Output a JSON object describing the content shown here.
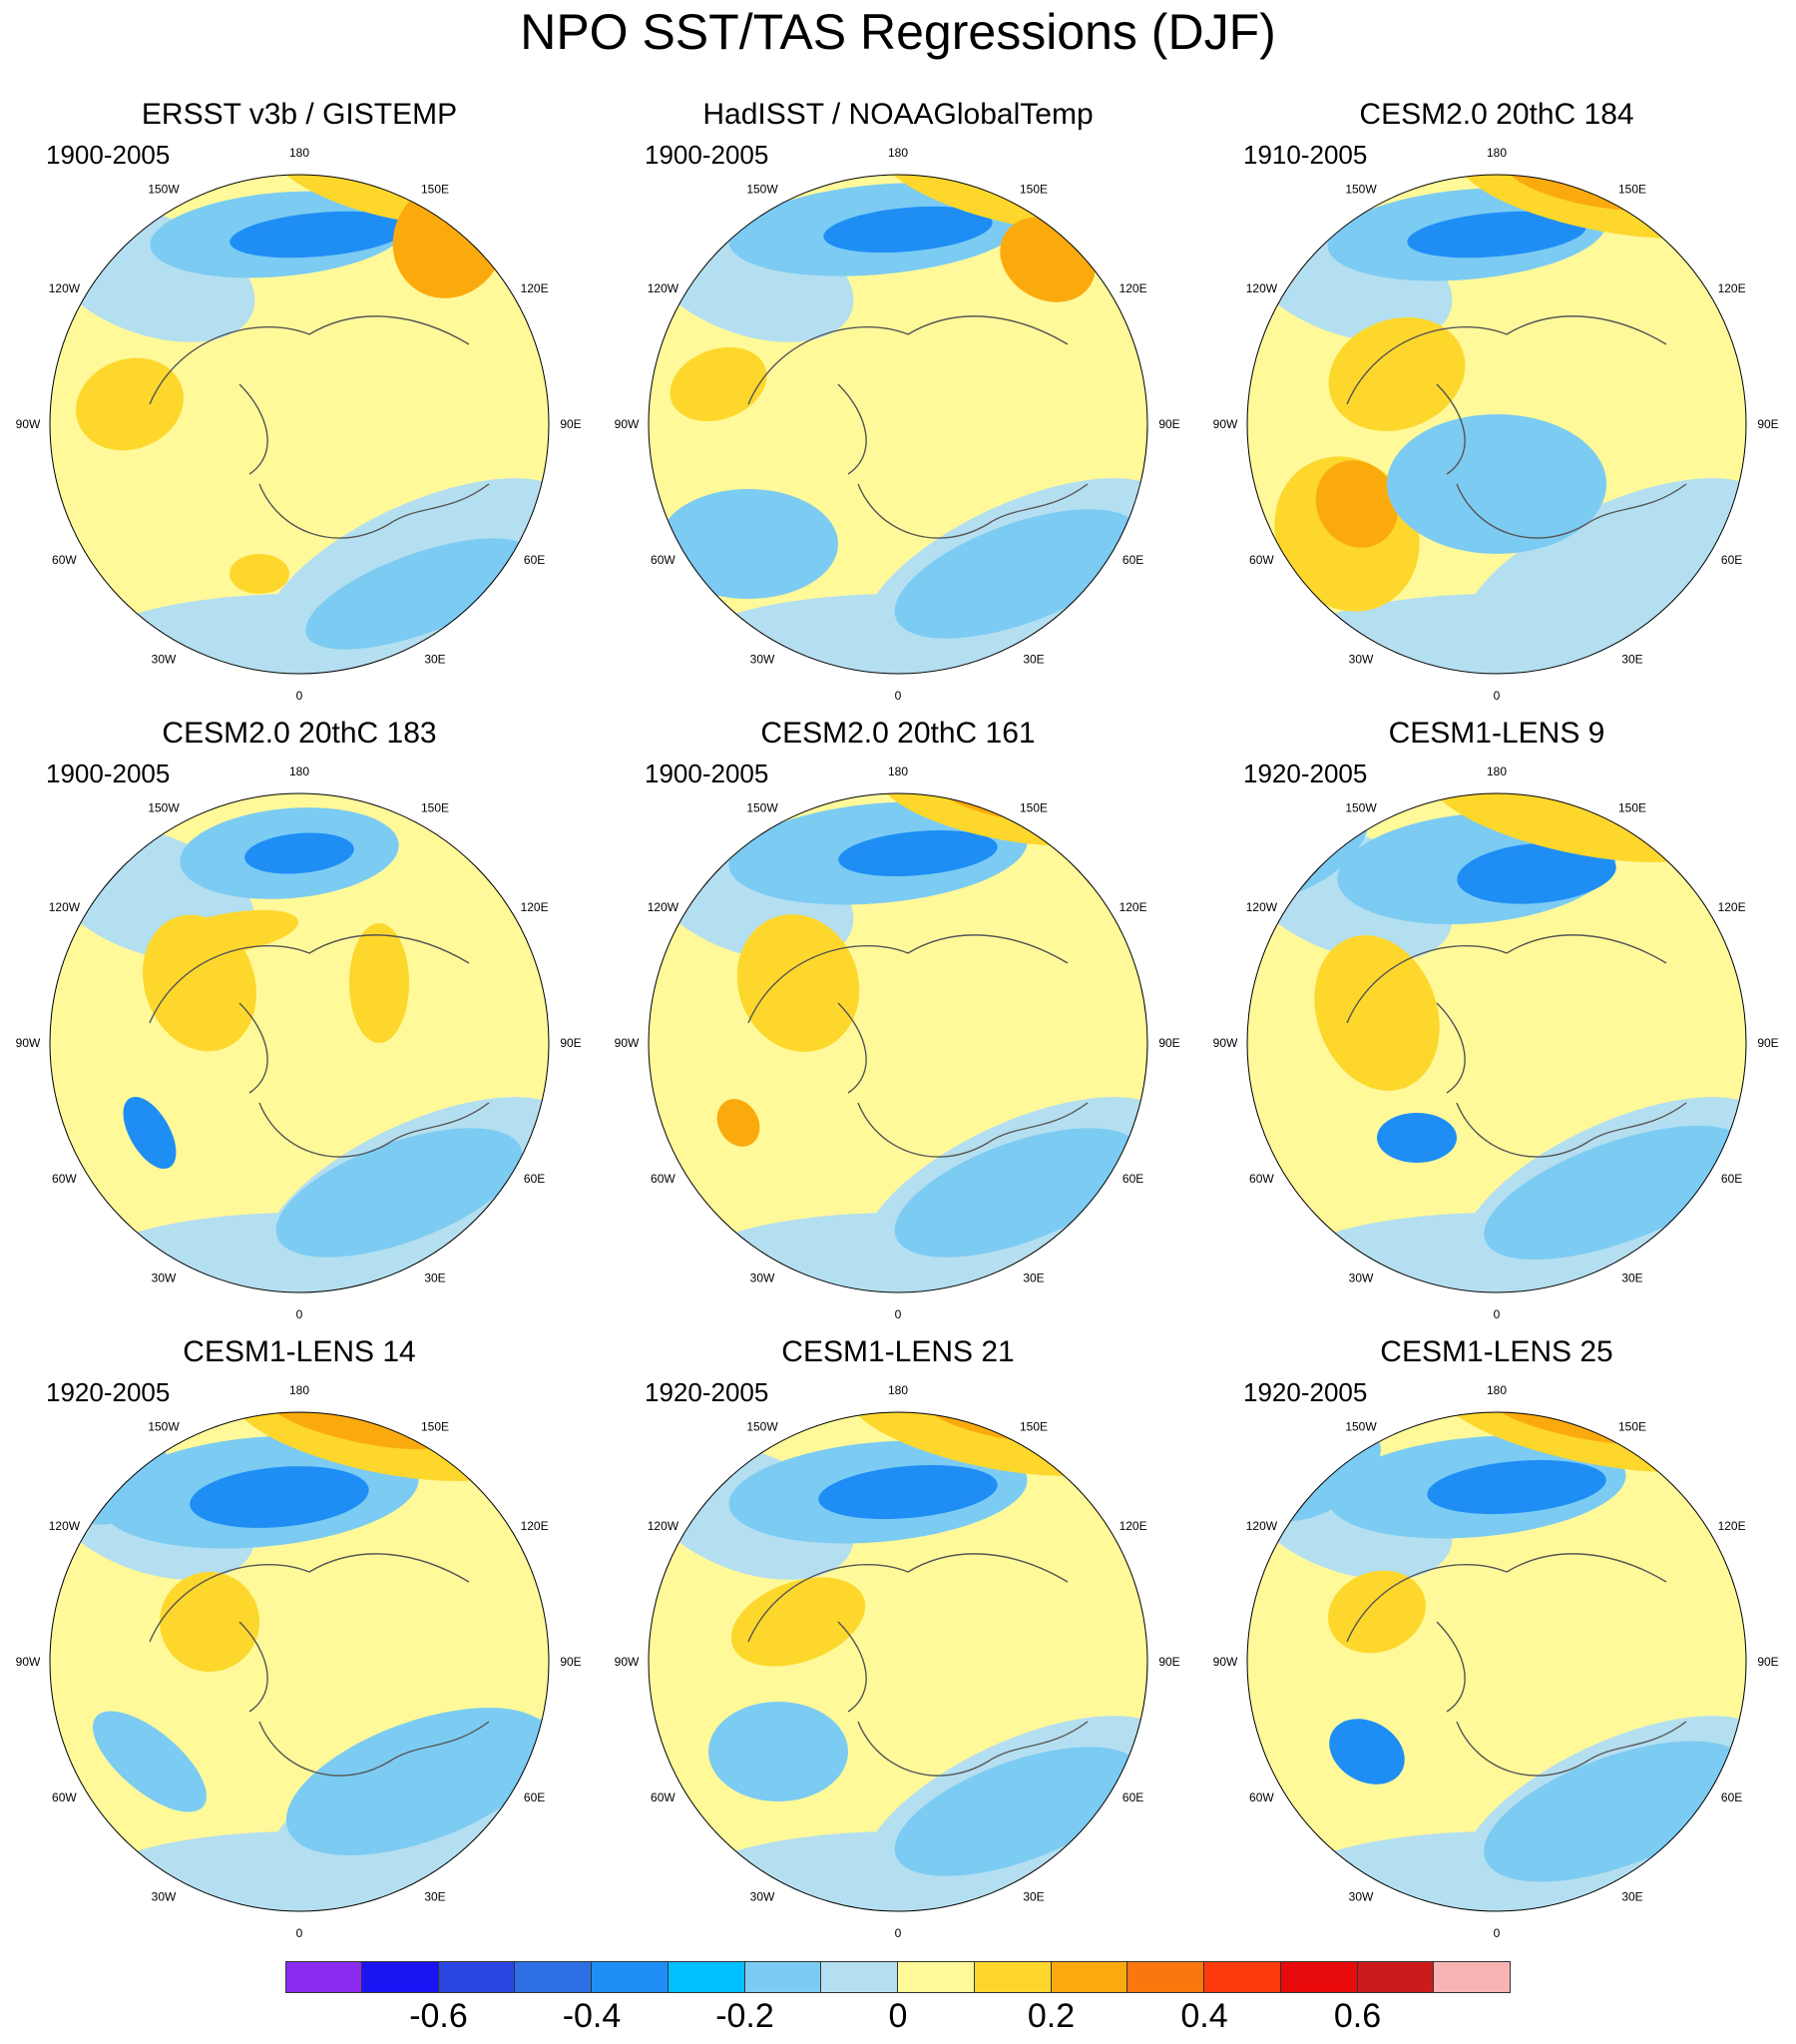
{
  "title": "NPO SST/TAS Regressions (DJF)",
  "longitude_labels": [
    "180",
    "150E",
    "120E",
    "90E",
    "60E",
    "30E",
    "0",
    "30W",
    "60W",
    "90W",
    "120W",
    "150W"
  ],
  "panels": [
    {
      "title": "ERSST v3b / GISTEMP",
      "period": "1900-2005"
    },
    {
      "title": "HadISST / NOAAGlobalTemp",
      "period": "1900-2005"
    },
    {
      "title": "CESM2.0 20thC 184",
      "period": "1910-2005"
    },
    {
      "title": "CESM2.0 20thC 183",
      "period": "1900-2005"
    },
    {
      "title": "CESM2.0 20thC 161",
      "period": "1900-2005"
    },
    {
      "title": "CESM1-LENS 9",
      "period": "1920-2005"
    },
    {
      "title": "CESM1-LENS 14",
      "period": "1920-2005"
    },
    {
      "title": "CESM1-LENS 21",
      "period": "1920-2005"
    },
    {
      "title": "CESM1-LENS 25",
      "period": "1920-2005"
    }
  ],
  "colorbar": {
    "colors": [
      "#8B2BF0",
      "#1A14F5",
      "#2B45E0",
      "#2F6FE6",
      "#1E8EF5",
      "#00C0FF",
      "#7CCBF2",
      "#B4DFF0",
      "#FFF99A",
      "#FDD72C",
      "#FBAA0E",
      "#FB760C",
      "#FC3A0C",
      "#E80A0A",
      "#CC1B1B",
      "#F8B4B4"
    ],
    "labels": [
      "-0.6",
      "-0.4",
      "-0.2",
      "0",
      "0.2",
      "0.4",
      "0.6"
    ]
  },
  "colors": {
    "ocean_neg": "#B4DFF0",
    "pos_weak": "#FFF99A",
    "pos_mid": "#FDD72C",
    "pos_strong": "#FBAA0E",
    "neg_mid": "#7CCBF2",
    "neg_strong": "#1E8EF5"
  }
}
